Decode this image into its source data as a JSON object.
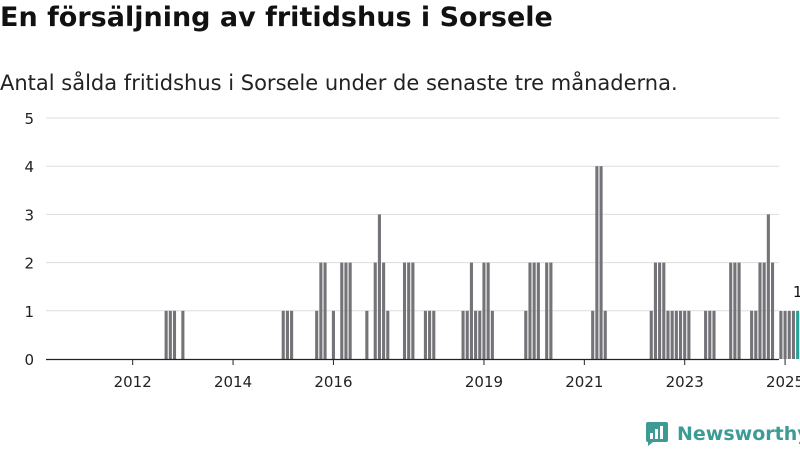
{
  "title": "En försäljning av fritidshus i Sorsele",
  "subtitle": "Antal sålda fritidshus i Sorsele under de senaste tre månaderna.",
  "brand": {
    "name": "Newsworthy",
    "logo_icon": "bar-chart-logo",
    "color": "#3d9b95"
  },
  "colors": {
    "bars": "#737378",
    "highlight": "#2aa198",
    "grid": "#dddddd"
  },
  "chart_data": {
    "type": "bar",
    "title": "",
    "xlabel": "",
    "ylabel": "",
    "ylim": [
      0,
      5
    ],
    "yticks": [
      0,
      1,
      2,
      3,
      4,
      5
    ],
    "xticks": [
      "2012",
      "2014",
      "2016",
      "2019",
      "2021",
      "2023",
      "2025"
    ],
    "xtick_dates": [
      "2012-01",
      "2014-01",
      "2016-01",
      "2019-01",
      "2021-01",
      "2023-01",
      "2025-01"
    ],
    "x_range": [
      "2011-01",
      "2025-05"
    ],
    "grid": true,
    "highlight_label": "1",
    "series": [
      {
        "values": [
          {
            "x": "2012-09",
            "y": 1
          },
          {
            "x": "2012-10",
            "y": 1
          },
          {
            "x": "2012-11",
            "y": 1
          },
          {
            "x": "2013-01",
            "y": 1
          },
          {
            "x": "2015-01",
            "y": 1
          },
          {
            "x": "2015-02",
            "y": 1
          },
          {
            "x": "2015-03",
            "y": 1
          },
          {
            "x": "2015-09",
            "y": 1
          },
          {
            "x": "2015-10",
            "y": 2
          },
          {
            "x": "2015-11",
            "y": 2
          },
          {
            "x": "2016-01",
            "y": 1
          },
          {
            "x": "2016-03",
            "y": 2
          },
          {
            "x": "2016-04",
            "y": 2
          },
          {
            "x": "2016-05",
            "y": 2
          },
          {
            "x": "2016-09",
            "y": 1
          },
          {
            "x": "2016-11",
            "y": 2
          },
          {
            "x": "2016-12",
            "y": 3
          },
          {
            "x": "2017-01",
            "y": 2
          },
          {
            "x": "2017-02",
            "y": 1
          },
          {
            "x": "2017-06",
            "y": 2
          },
          {
            "x": "2017-07",
            "y": 2
          },
          {
            "x": "2017-08",
            "y": 2
          },
          {
            "x": "2017-11",
            "y": 1
          },
          {
            "x": "2017-12",
            "y": 1
          },
          {
            "x": "2018-01",
            "y": 1
          },
          {
            "x": "2018-08",
            "y": 1
          },
          {
            "x": "2018-09",
            "y": 1
          },
          {
            "x": "2018-10",
            "y": 2
          },
          {
            "x": "2018-11",
            "y": 1
          },
          {
            "x": "2018-12",
            "y": 1
          },
          {
            "x": "2019-01",
            "y": 2
          },
          {
            "x": "2019-02",
            "y": 2
          },
          {
            "x": "2019-03",
            "y": 1
          },
          {
            "x": "2019-11",
            "y": 1
          },
          {
            "x": "2019-12",
            "y": 2
          },
          {
            "x": "2020-01",
            "y": 2
          },
          {
            "x": "2020-02",
            "y": 2
          },
          {
            "x": "2020-04",
            "y": 2
          },
          {
            "x": "2020-05",
            "y": 2
          },
          {
            "x": "2021-03",
            "y": 1
          },
          {
            "x": "2021-04",
            "y": 4
          },
          {
            "x": "2021-05",
            "y": 4
          },
          {
            "x": "2021-06",
            "y": 1
          },
          {
            "x": "2022-05",
            "y": 1
          },
          {
            "x": "2022-06",
            "y": 2
          },
          {
            "x": "2022-07",
            "y": 2
          },
          {
            "x": "2022-08",
            "y": 2
          },
          {
            "x": "2022-09",
            "y": 1
          },
          {
            "x": "2022-10",
            "y": 1
          },
          {
            "x": "2022-11",
            "y": 1
          },
          {
            "x": "2022-12",
            "y": 1
          },
          {
            "x": "2023-01",
            "y": 1
          },
          {
            "x": "2023-02",
            "y": 1
          },
          {
            "x": "2023-06",
            "y": 1
          },
          {
            "x": "2023-07",
            "y": 1
          },
          {
            "x": "2023-08",
            "y": 1
          },
          {
            "x": "2023-12",
            "y": 2
          },
          {
            "x": "2024-01",
            "y": 2
          },
          {
            "x": "2024-02",
            "y": 2
          },
          {
            "x": "2024-05",
            "y": 1
          },
          {
            "x": "2024-06",
            "y": 1
          },
          {
            "x": "2024-07",
            "y": 2
          },
          {
            "x": "2024-08",
            "y": 2
          },
          {
            "x": "2024-09",
            "y": 3
          },
          {
            "x": "2024-10",
            "y": 2
          },
          {
            "x": "2024-12",
            "y": 1
          },
          {
            "x": "2025-01",
            "y": 1
          },
          {
            "x": "2025-02",
            "y": 1
          },
          {
            "x": "2025-03",
            "y": 1
          },
          {
            "x": "2025-04",
            "y": 1
          }
        ]
      }
    ]
  }
}
